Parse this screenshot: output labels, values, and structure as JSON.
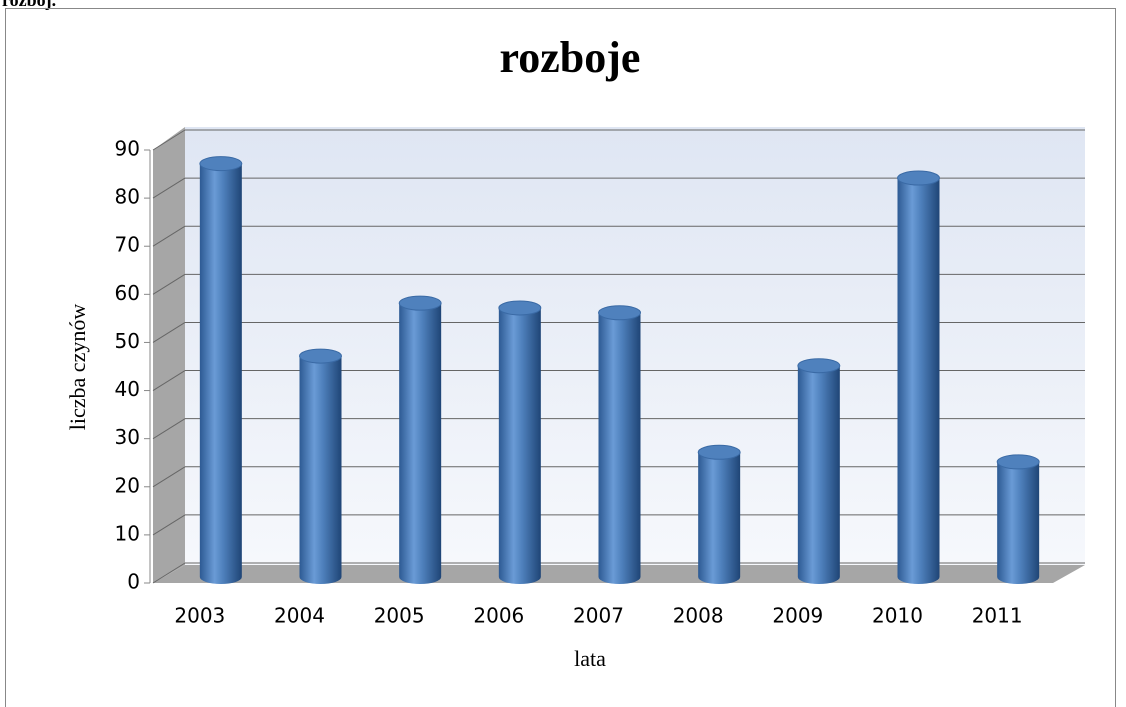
{
  "page_heading": "rozboj.",
  "chart_data": {
    "type": "bar",
    "title": "rozboje",
    "x_label": "lata",
    "y_label": "liczba czynów",
    "categories": [
      "2003",
      "2004",
      "2005",
      "2006",
      "2007",
      "2008",
      "2009",
      "2010",
      "2011"
    ],
    "values": [
      88,
      48,
      59,
      58,
      57,
      28,
      46,
      85,
      26
    ],
    "color": "#4f81bd",
    "ylim": [
      0,
      90
    ],
    "yticks": [
      0,
      10,
      20,
      30,
      40,
      50,
      60,
      70,
      80,
      90
    ],
    "grid": true
  }
}
